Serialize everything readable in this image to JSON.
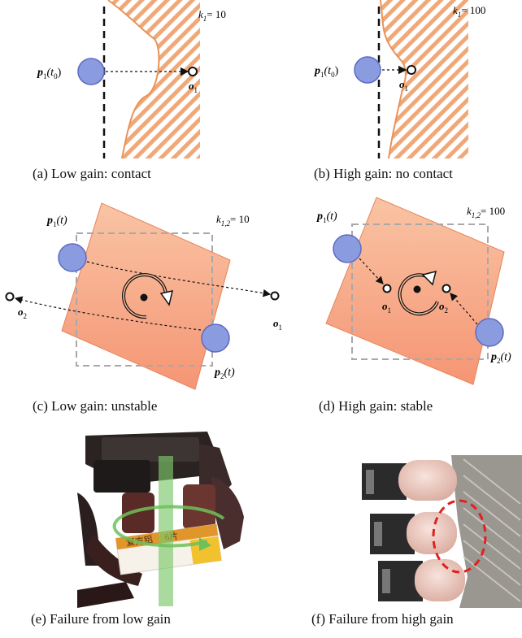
{
  "figure": {
    "panel_a": {
      "caption": "(a) Low gain: contact",
      "gain_label": "k",
      "gain_sub": "1",
      "gain_value": "= 10",
      "point_label": "p",
      "point_sub": "1",
      "point_arg": "(t",
      "point_arg_sub": "0",
      "point_arg_close": ")",
      "target_label": "o",
      "target_sub": "1"
    },
    "panel_b": {
      "caption": "(b) High gain: no contact",
      "gain_label": "k",
      "gain_sub": "1",
      "gain_value": "= 100",
      "point_label": "p",
      "point_sub": "1",
      "point_arg": "(t",
      "point_arg_sub": "0",
      "point_arg_close": ")",
      "target_label": "o",
      "target_sub": "1"
    },
    "panel_c": {
      "caption": "(c) Low gain: unstable",
      "gain_label": "k",
      "gain_sub": "1,2",
      "gain_value": "= 10",
      "p1_label": "p",
      "p1_sub": "1",
      "p1_arg": "(t)",
      "p2_label": "p",
      "p2_sub": "2",
      "p2_arg": "(t)",
      "o1_label": "o",
      "o1_sub": "1",
      "o2_label": "o",
      "o2_sub": "2"
    },
    "panel_d": {
      "caption": "(d) High gain: stable",
      "gain_label": "k",
      "gain_sub": "1,2",
      "gain_value": "= 100",
      "p1_label": "p",
      "p1_sub": "1",
      "p1_arg": "(t)",
      "p2_label": "p",
      "p2_sub": "2",
      "p2_arg": "(t)",
      "o1_label": "o",
      "o1_sub": "1",
      "o2_label": "o",
      "o2_sub": "2"
    },
    "panel_e": {
      "caption": "(e) Failure from low gain",
      "box_text": "复方铝",
      "box_text2": "6片"
    },
    "panel_f": {
      "caption": "(f) Failure from high gain"
    },
    "colors": {
      "hatch": "#e8945a",
      "circle_fill": "#8b9be0",
      "circle_stroke": "#5c6bc0",
      "square": "#f4a07a",
      "dash_box": "#a8a8a8",
      "red_ellipse": "#e02020",
      "green_rod": "#7cc76a"
    }
  }
}
